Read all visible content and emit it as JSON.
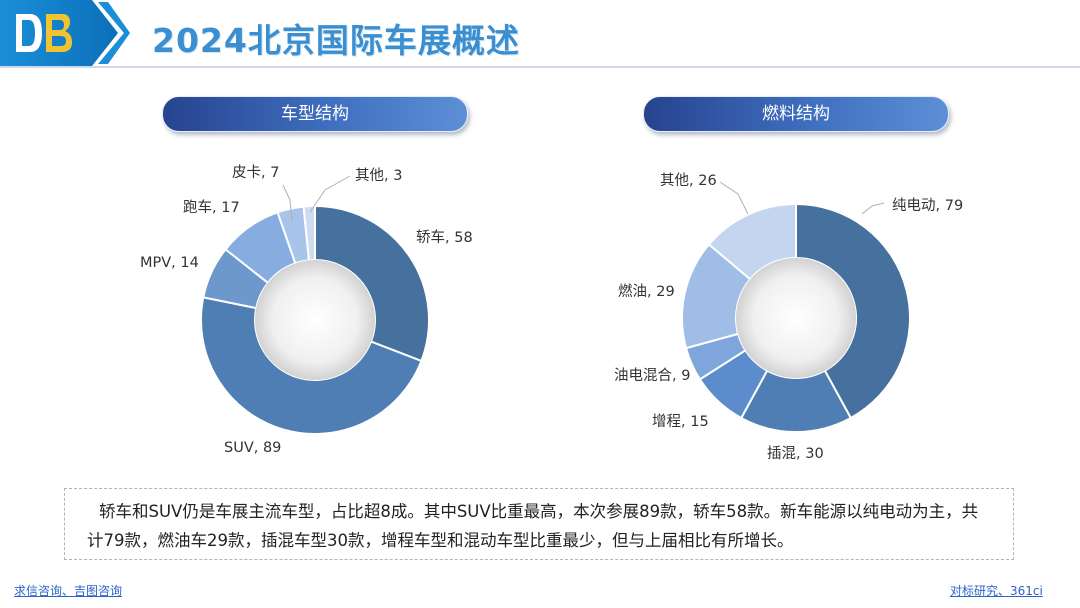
{
  "header": {
    "title": "2024北京国际车展概述"
  },
  "colors": {
    "title": "#3b8fd0",
    "pill": "#2f58a8"
  },
  "chart_data": [
    {
      "type": "pie",
      "title": "车型结构",
      "slices": [
        {
          "label": "轿车",
          "value": 58,
          "color": "#46709e"
        },
        {
          "label": "SUV",
          "value": 89,
          "color": "#4f7eb4"
        },
        {
          "label": "MPV",
          "value": 14,
          "color": "#6c98cc"
        },
        {
          "label": "跑车",
          "value": 17,
          "color": "#87ace0"
        },
        {
          "label": "皮卡",
          "value": 7,
          "color": "#a9c4ea"
        },
        {
          "label": "其他",
          "value": 3,
          "color": "#cddcf2"
        }
      ]
    },
    {
      "type": "pie",
      "title": "燃料结构",
      "slices": [
        {
          "label": "纯电动",
          "value": 79,
          "color": "#46709e"
        },
        {
          "label": "插混",
          "value": 30,
          "color": "#4f7eb4"
        },
        {
          "label": "增程",
          "value": 15,
          "color": "#5c8ccc"
        },
        {
          "label": "油电混合",
          "value": 9,
          "color": "#7ea6dc"
        },
        {
          "label": "燃油",
          "value": 29,
          "color": "#9fbde6"
        },
        {
          "label": "其他",
          "value": 26,
          "color": "#c3d5ef"
        }
      ]
    }
  ],
  "summary": {
    "text": "轿车和SUV仍是车展主流车型，占比超8成。其中SUV比重最高，本次参展89款，轿车58款。新车能源以纯电动为主，共计79款，燃油车29款，插混车型30款，增程车型和混动车型比重最少，但与上届相比有所增长。"
  },
  "footer": {
    "left": "求信咨询、吉图咨询",
    "right": "对标研究、361ci"
  }
}
